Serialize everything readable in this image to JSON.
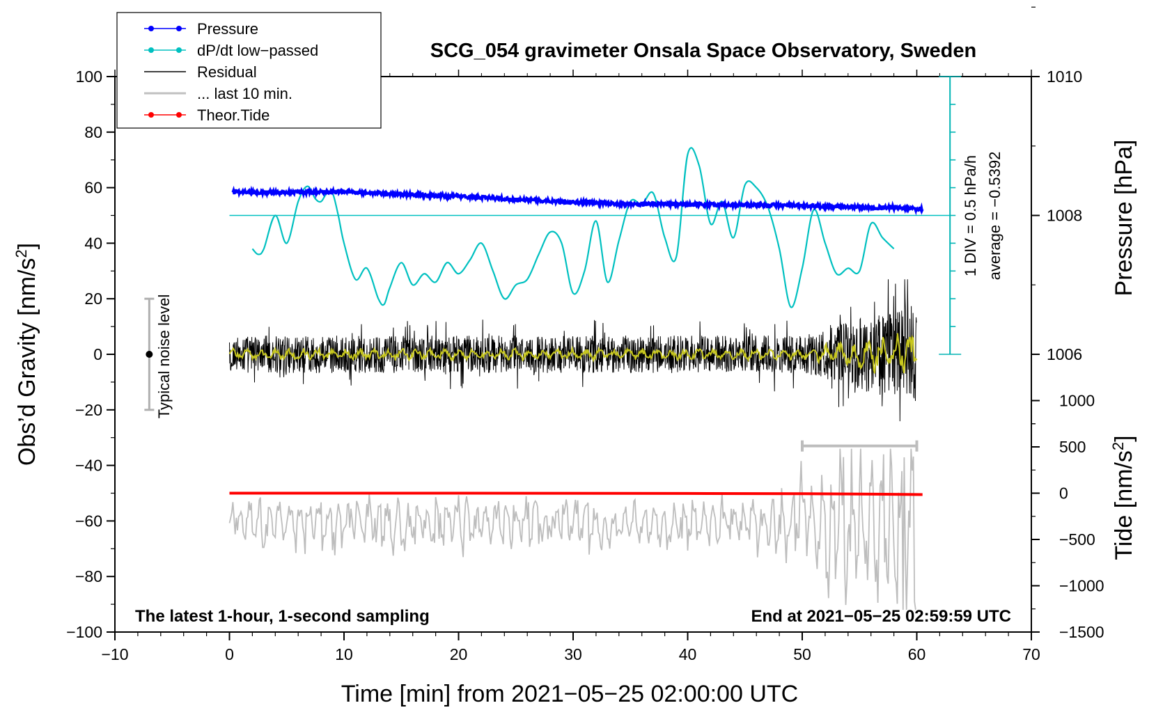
{
  "chart_data": {
    "type": "line",
    "title": "SCG_054 gravimeter Onsala Space Observatory, Sweden",
    "xlabel": "Time [min] from 2021−05−25 02:00:00 UTC",
    "ylabel_left": "Obs’d Gravity [nm/s",
    "ylabel_left_sup": "2",
    "ylabel_left_tail": "]",
    "ylabel_right_pressure": "Pressure [hPa]",
    "ylabel_right_tide": "Tide [nm/s",
    "ylabel_right_tide_sup": "2",
    "ylabel_right_tide_tail": "]",
    "xlim": [
      -10,
      70
    ],
    "ylim_left": [
      -100,
      100
    ],
    "x_ticks": [
      "−10",
      "0",
      "10",
      "20",
      "30",
      "40",
      "50",
      "60",
      "70"
    ],
    "x_tick_values": [
      -10,
      0,
      10,
      20,
      30,
      40,
      50,
      60,
      70
    ],
    "y_ticks_left": [
      "100",
      "80",
      "60",
      "40",
      "20",
      "0",
      "−20",
      "−40",
      "−60",
      "−80",
      "−100"
    ],
    "y_tick_values_left": [
      100,
      80,
      60,
      40,
      20,
      0,
      -20,
      -40,
      -60,
      -80,
      -100
    ],
    "pressure_axis": {
      "anchor": 1008,
      "anchor_gravity": 50,
      "gravity_per_hPa": 25,
      "ticks": [
        "1010",
        "1008",
        "1006"
      ],
      "tick_values": [
        1010,
        1008,
        1006
      ]
    },
    "tide_axis": {
      "anchor": 0,
      "anchor_gravity": -50,
      "gravity_per_unit": 0.03333,
      "ticks": [
        "1000",
        "500",
        "0",
        "−500",
        "−1000",
        "−1500"
      ],
      "tick_values": [
        1000,
        500,
        0,
        -500,
        -1000,
        -1500
      ]
    },
    "dpdt_scale": {
      "x": 62.9,
      "y_from": 0,
      "y_to": 100,
      "div_step": 10,
      "label_div": "1 DIV = 0.5 hPa/h",
      "label_avg": "average = −0.5392"
    },
    "noise_bar": {
      "x": -7,
      "y_from": -20,
      "y_to": 20,
      "label": "Typical noise level"
    },
    "last10_bar": {
      "x_from": 50,
      "x_to": 60,
      "y": -33
    },
    "footer_left": "The latest 1‑hour, 1‑second sampling",
    "footer_right": "End at 2021−05−25 02:59:59 UTC",
    "legend": [
      {
        "label": "Pressure",
        "color": "#0000ff",
        "marker": true
      },
      {
        "label": "dP/dt low−passed",
        "color": "#00c0c0",
        "marker": true
      },
      {
        "label": "Residual",
        "color": "#000000",
        "marker": false
      },
      {
        "label": "... last 10 min.",
        "color": "#c0c0c0",
        "marker": false
      },
      {
        "label": "Theor.Tide",
        "color": "#ff0000",
        "marker": true
      }
    ],
    "colors": {
      "pressure": "#0000ff",
      "dpdt": "#00c0c0",
      "residual": "#000000",
      "smoothed": "#c8c81e",
      "last10": "#bdbdbd",
      "tide": "#ff0000",
      "scale": "#00b4b4"
    },
    "series": [
      {
        "name": "Pressure",
        "x": [
          0.3,
          5,
          10,
          15,
          20,
          25,
          30,
          35,
          40,
          45,
          50,
          55,
          58,
          60.5
        ],
        "y": [
          58.5,
          58.3,
          58.6,
          57.6,
          56.9,
          55.8,
          54.8,
          54.1,
          53.9,
          53.8,
          53.5,
          53.0,
          52.8,
          52.2
        ]
      },
      {
        "name": "dP/dt low-passed",
        "x": [
          2,
          2.5,
          3,
          4,
          5,
          6,
          6.8,
          7.5,
          8,
          8.5,
          9,
          9.5,
          10,
          11,
          12,
          13,
          13.5,
          14,
          15,
          16,
          17,
          18,
          19,
          20,
          21,
          22,
          23,
          24,
          25,
          26,
          27,
          28,
          29,
          30,
          31,
          32,
          33,
          34,
          35,
          36,
          37,
          38,
          39,
          40,
          41,
          42,
          43,
          44,
          45,
          46,
          47,
          48,
          49,
          50,
          51,
          52,
          53,
          54,
          55,
          56,
          57,
          58
        ],
        "y": [
          38,
          36,
          38,
          50,
          40,
          55,
          60.5,
          56,
          55,
          58,
          58,
          50,
          40,
          27,
          31,
          20,
          18,
          24,
          33,
          25,
          29,
          26,
          33,
          29,
          34,
          40,
          30,
          20,
          25,
          27,
          36,
          44,
          40,
          22,
          30,
          48,
          26,
          41,
          55,
          54,
          58,
          42,
          35,
          72,
          68,
          47,
          55,
          42,
          61,
          60,
          53,
          38,
          17,
          31,
          52,
          40,
          29,
          31,
          30,
          47,
          42,
          38
        ]
      },
      {
        "name": "Theor.Tide",
        "x": [
          0,
          20,
          40,
          50,
          55,
          60.5
        ],
        "y": [
          -50.0,
          -50.0,
          -50.1,
          -50.2,
          -50.3,
          -50.5
        ]
      }
    ],
    "generated_series_notes": {
      "residual": {
        "x_from": 0,
        "x_to": 60,
        "mean": 0,
        "amplitude": 9,
        "growth_after": 50,
        "max": 27,
        "min": -32
      },
      "smoothed": {
        "x_from": 0,
        "x_to": 60,
        "mean": 0,
        "amplitude": 2
      },
      "last10": {
        "x_from": 0,
        "x_to": 60,
        "mean": -61,
        "amplitude": 8,
        "growth_after": 47,
        "max": -34,
        "min": -92
      }
    }
  }
}
